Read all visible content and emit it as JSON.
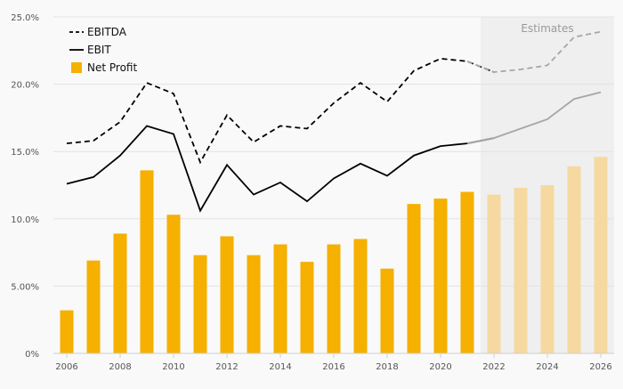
{
  "chart_data": {
    "type": "bar",
    "x": [
      2006,
      2007,
      2008,
      2009,
      2010,
      2011,
      2012,
      2013,
      2014,
      2015,
      2016,
      2017,
      2018,
      2019,
      2020,
      2021,
      2022,
      2023,
      2024,
      2025,
      2026
    ],
    "xticks": [
      "2006",
      "2008",
      "2010",
      "2012",
      "2014",
      "2016",
      "2018",
      "2020",
      "2022",
      "2024",
      "2026"
    ],
    "yticks": [
      "0%",
      "5.00%",
      "10.0%",
      "15.0%",
      "20.0%",
      "25.0%"
    ],
    "ylim": [
      0,
      25
    ],
    "grid": true,
    "legend_position": "top-left",
    "estimates_label": "Estimates",
    "estimates_start": 2021.5,
    "series": [
      {
        "name": "EBITDA",
        "kind": "line",
        "style": "dashed",
        "color": "#000000",
        "estimate_color": "#a6a6a6",
        "values": [
          15.6,
          15.8,
          17.2,
          20.1,
          19.3,
          14.2,
          17.7,
          15.7,
          16.9,
          16.7,
          18.6,
          20.1,
          18.7,
          21.0,
          21.9,
          21.7,
          20.9,
          21.1,
          21.4,
          23.5,
          23.9
        ]
      },
      {
        "name": "EBIT",
        "kind": "line",
        "style": "solid",
        "color": "#000000",
        "estimate_color": "#a6a6a6",
        "values": [
          12.6,
          13.1,
          14.7,
          16.9,
          16.3,
          10.6,
          14.0,
          11.8,
          12.7,
          11.3,
          13.0,
          14.1,
          13.2,
          14.7,
          15.4,
          15.6,
          16.0,
          16.7,
          17.4,
          18.9,
          19.4
        ]
      },
      {
        "name": "Net Profit",
        "kind": "bar",
        "color": "#f5b000",
        "estimate_color": "#f5d9a0",
        "values": [
          3.2,
          6.9,
          8.9,
          13.6,
          10.3,
          7.3,
          8.7,
          7.3,
          8.1,
          6.8,
          8.1,
          8.5,
          6.3,
          11.1,
          11.5,
          12.0,
          11.8,
          12.3,
          12.5,
          13.9,
          14.6
        ]
      }
    ]
  }
}
